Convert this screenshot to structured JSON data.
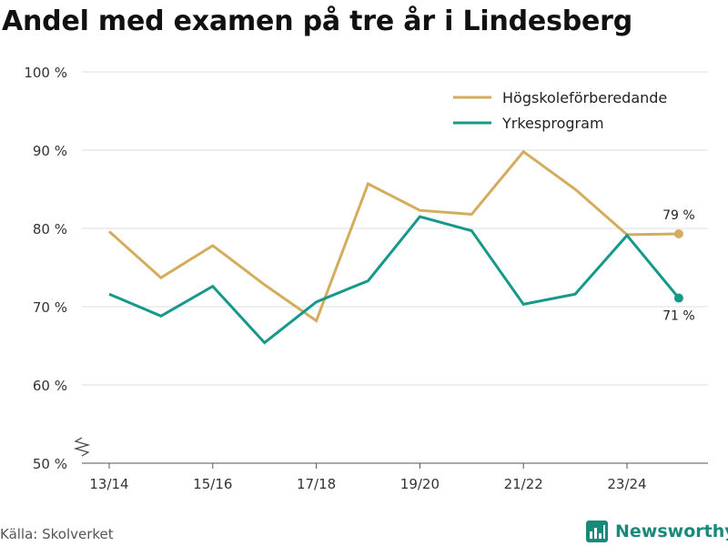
{
  "title": "Andel med examen på tre år i Lindesberg",
  "source": "Källa: Skolverket",
  "brand": "Newsworthy",
  "chart_data": {
    "type": "line",
    "title": "Andel med examen på tre år i Lindesberg",
    "xlabel": "",
    "ylabel": "",
    "x": [
      "13/14",
      "14/15",
      "15/16",
      "16/17",
      "17/18",
      "18/19",
      "19/20",
      "20/21",
      "21/22",
      "22/23",
      "23/24",
      "24/25"
    ],
    "x_tick_labels": [
      "13/14",
      "15/16",
      "17/18",
      "19/20",
      "21/22",
      "23/24"
    ],
    "y_ticks": [
      50,
      60,
      70,
      80,
      90,
      100
    ],
    "y_tick_labels": [
      "50 %",
      "60 %",
      "70 %",
      "80 %",
      "90 %",
      "100 %"
    ],
    "ylim": [
      50,
      100
    ],
    "grid": "horizontal",
    "legend_position": "top-right",
    "series": [
      {
        "name": "Högskoleförberedande",
        "color": "#d4ad5c",
        "values": [
          79.6,
          73.7,
          77.8,
          72.8,
          68.2,
          85.7,
          82.3,
          81.8,
          89.8,
          85.0,
          79.2,
          79.3
        ],
        "end_label": "79 %"
      },
      {
        "name": "Yrkesprogram",
        "color": "#16988b",
        "values": [
          71.6,
          68.8,
          72.6,
          65.4,
          70.6,
          73.3,
          81.5,
          79.7,
          70.3,
          71.6,
          79.1,
          71.1
        ],
        "end_label": "71 %"
      }
    ]
  }
}
